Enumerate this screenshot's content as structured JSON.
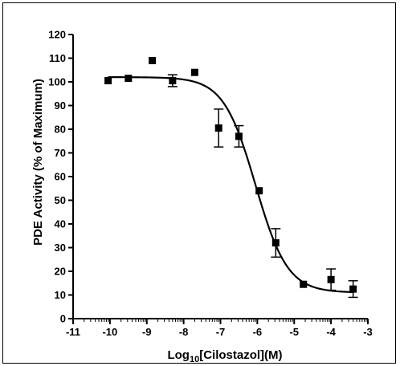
{
  "chart_data": {
    "type": "scatter",
    "xlabel_main": "Log",
    "xlabel_sub": "10",
    "xlabel_rest": "[Cilostazol](M)",
    "ylabel": "PDE  Activity (% of Maximum)",
    "xlim": [
      -11,
      -3
    ],
    "ylim": [
      0,
      120
    ],
    "x_ticks": [
      -11,
      -10,
      -9,
      -8,
      -7,
      -6,
      -5,
      -4,
      -3
    ],
    "y_ticks": [
      0,
      10,
      20,
      30,
      40,
      50,
      60,
      70,
      80,
      90,
      100,
      110,
      120
    ],
    "grid": false,
    "series": [
      {
        "x": [
          -10.05,
          -9.5,
          -8.85,
          -8.3,
          -7.7,
          -7.05,
          -6.5,
          -5.95,
          -5.5,
          -4.75,
          -4.0,
          -3.4
        ],
        "y": [
          100.5,
          101.5,
          109,
          100.5,
          104,
          80.5,
          77,
          54,
          32,
          14.5,
          16.5,
          12.5
        ],
        "err": [
          0,
          0,
          0,
          2.5,
          0,
          8,
          4.5,
          0,
          6,
          0,
          4.5,
          3.5
        ]
      }
    ],
    "fit": {
      "model": "sigmoid",
      "top": 102,
      "bottom": 11,
      "logEC50": -6.05,
      "hill": -1.0
    }
  }
}
